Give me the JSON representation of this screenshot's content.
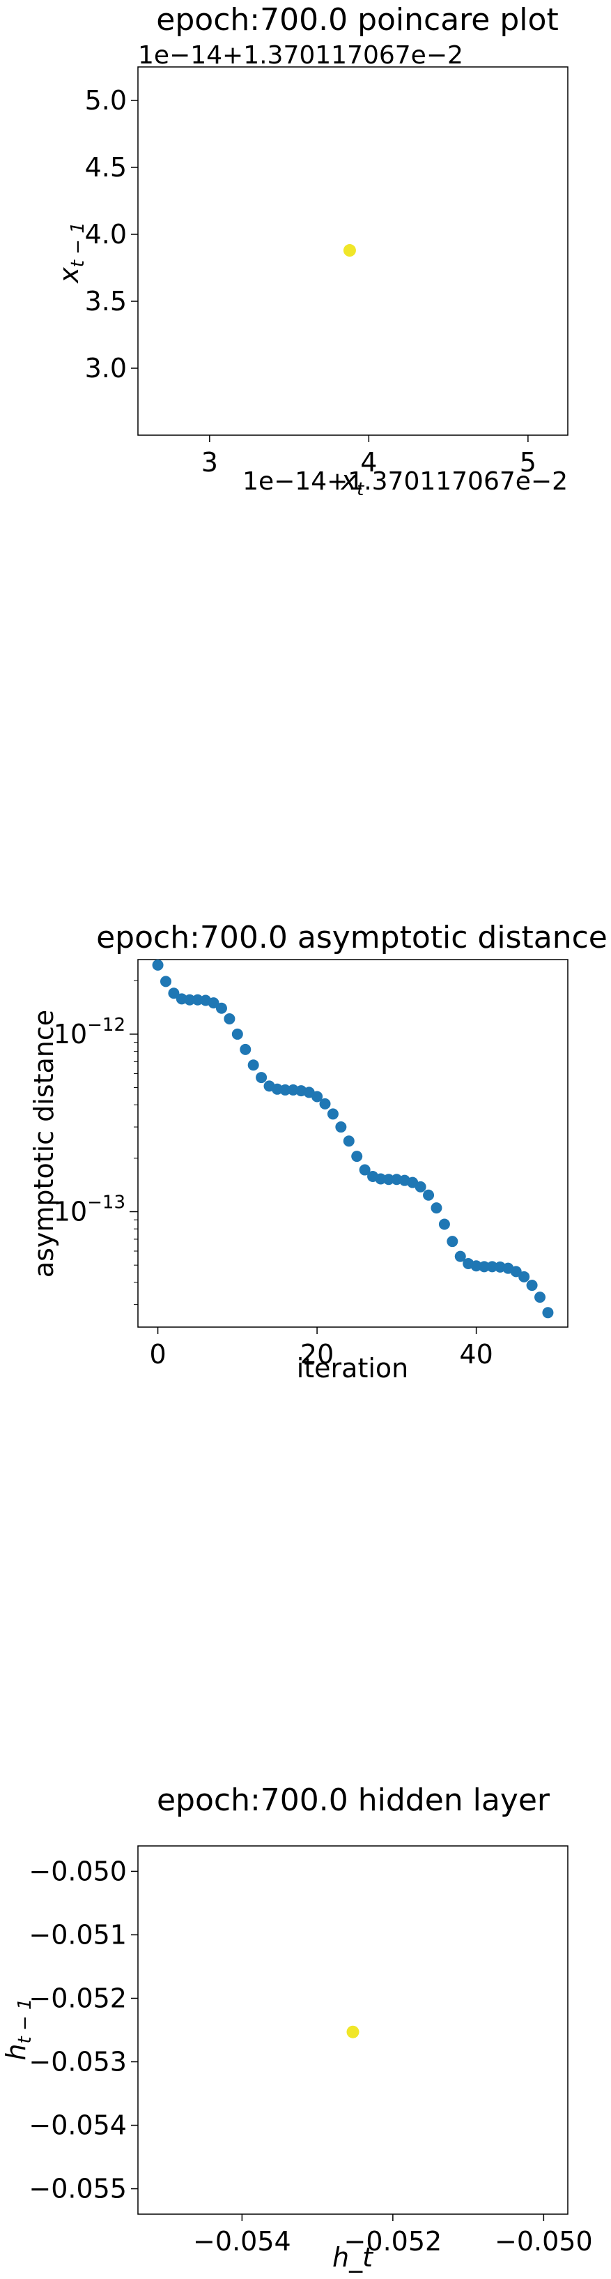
{
  "chart_data": [
    {
      "type": "scatter",
      "title": "epoch:700.0 poincare plot",
      "xlabel": "x_t",
      "ylabel": "x_{t-1}",
      "x_offset_label": "1e−14+1.370117067e−2",
      "y_offset_label": "1e−14+1.370117067e−2",
      "xlim": [
        2.55,
        5.25
      ],
      "ylim": [
        2.5,
        5.25
      ],
      "x_ticks": [
        3,
        4,
        5
      ],
      "x_tick_labels": [
        "3",
        "4",
        "5"
      ],
      "y_ticks": [
        3.0,
        3.5,
        4.0,
        4.5,
        5.0
      ],
      "y_tick_labels": [
        "3.0",
        "3.5",
        "4.0",
        "4.5",
        "5.0"
      ],
      "points": [
        {
          "x": 3.88,
          "y": 3.88
        }
      ],
      "point_color": "#f0e628"
    },
    {
      "type": "scatter",
      "title": "epoch:700.0 asymptotic distance",
      "xlabel": "iteration",
      "ylabel": "asymptotic distance",
      "y_scale": "log",
      "xlim": [
        -2.5,
        51.5
      ],
      "ylim_log10": [
        -13.65,
        -11.58
      ],
      "x_ticks": [
        0,
        20,
        40
      ],
      "x_tick_labels": [
        "0",
        "20",
        "40"
      ],
      "y_major_ticks_log10": [
        -13,
        -12
      ],
      "y_tick_labels": [
        "10",
        "10"
      ],
      "y_tick_exponents": [
        "−13",
        "−12"
      ],
      "point_color": "#1f77b4",
      "x": [
        0,
        1,
        2,
        3,
        4,
        5,
        6,
        7,
        8,
        9,
        10,
        11,
        12,
        13,
        14,
        15,
        16,
        17,
        18,
        19,
        20,
        21,
        22,
        23,
        24,
        25,
        26,
        27,
        28,
        29,
        30,
        31,
        32,
        33,
        34,
        35,
        36,
        37,
        38,
        39,
        40,
        41,
        42,
        43,
        44,
        45,
        46,
        47,
        48,
        49
      ],
      "y": [
        2.45e-12,
        1.98e-12,
        1.7e-12,
        1.58e-12,
        1.56e-12,
        1.56e-12,
        1.55e-12,
        1.5e-12,
        1.4e-12,
        1.22e-12,
        1e-12,
        8.2e-13,
        6.7e-13,
        5.7e-13,
        5.1e-13,
        4.9e-13,
        4.85e-13,
        4.85e-13,
        4.8e-13,
        4.7e-13,
        4.45e-13,
        4.05e-13,
        3.55e-13,
        3e-13,
        2.5e-13,
        2.05e-13,
        1.72e-13,
        1.58e-13,
        1.53e-13,
        1.52e-13,
        1.52e-13,
        1.5e-13,
        1.46e-13,
        1.38e-13,
        1.24e-13,
        1.05e-13,
        8.5e-14,
        6.8e-14,
        5.6e-14,
        5.1e-14,
        4.95e-14,
        4.9e-14,
        4.9e-14,
        4.88e-14,
        4.8e-14,
        4.6e-14,
        4.3e-14,
        3.85e-14,
        3.3e-14,
        2.7e-14
      ]
    },
    {
      "type": "scatter",
      "title": "epoch:700.0 hidden layer",
      "xlabel": "h_t",
      "ylabel": "h_{t-1}",
      "xlim": [
        -0.05538,
        -0.04968
      ],
      "ylim": [
        -0.0554,
        -0.0496
      ],
      "x_ticks": [
        -0.054,
        -0.052,
        -0.05
      ],
      "x_tick_labels": [
        "−0.054",
        "−0.052",
        "−0.050"
      ],
      "y_ticks": [
        -0.055,
        -0.054,
        -0.053,
        -0.052,
        -0.051,
        -0.05
      ],
      "y_tick_labels": [
        "−0.055",
        "−0.054",
        "−0.053",
        "−0.052",
        "−0.051",
        "−0.050"
      ],
      "points": [
        {
          "x": -0.05253,
          "y": -0.05253
        }
      ],
      "point_color": "#f0e628"
    }
  ]
}
